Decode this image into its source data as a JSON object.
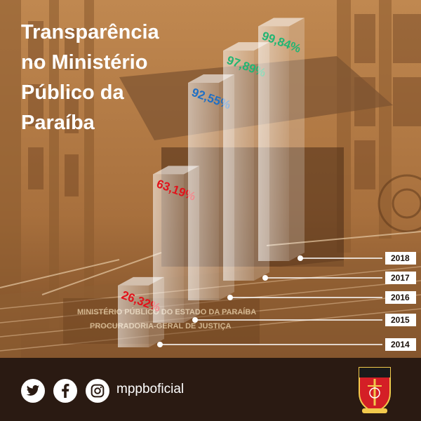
{
  "title_lines": [
    "Transparência",
    "no Ministério",
    "Público da",
    "Paraíba"
  ],
  "building_sign": [
    "MINISTÉRIO PÚBLICO DO ESTADO DA PARAÍBA",
    "PROCURADORIA-GERAL DE JUSTIÇA"
  ],
  "chart_data": {
    "type": "bar",
    "title": "Transparência no Ministério Público da Paraíba",
    "categories": [
      "2014",
      "2015",
      "2016",
      "2017",
      "2018"
    ],
    "values": [
      26.32,
      63.19,
      92.55,
      97.89,
      99.84
    ],
    "labels": [
      "26,32%",
      "63,19%",
      "92,55%",
      "97,89%",
      "99,84%"
    ],
    "label_colors": [
      "#e2131b",
      "#e2131b",
      "#1f6fc4",
      "#22b573",
      "#22b573"
    ],
    "ylim": [
      0,
      100
    ]
  },
  "footer": {
    "handle": "mppboficial",
    "icons": [
      "twitter-icon",
      "facebook-icon",
      "instagram-icon"
    ],
    "logo": "mppb-crest-logo"
  },
  "colors": {
    "background": "#b07a45",
    "footer": "#2a1a12",
    "accent_red": "#e2131b",
    "accent_blue": "#1f6fc4",
    "accent_green": "#22b573"
  }
}
